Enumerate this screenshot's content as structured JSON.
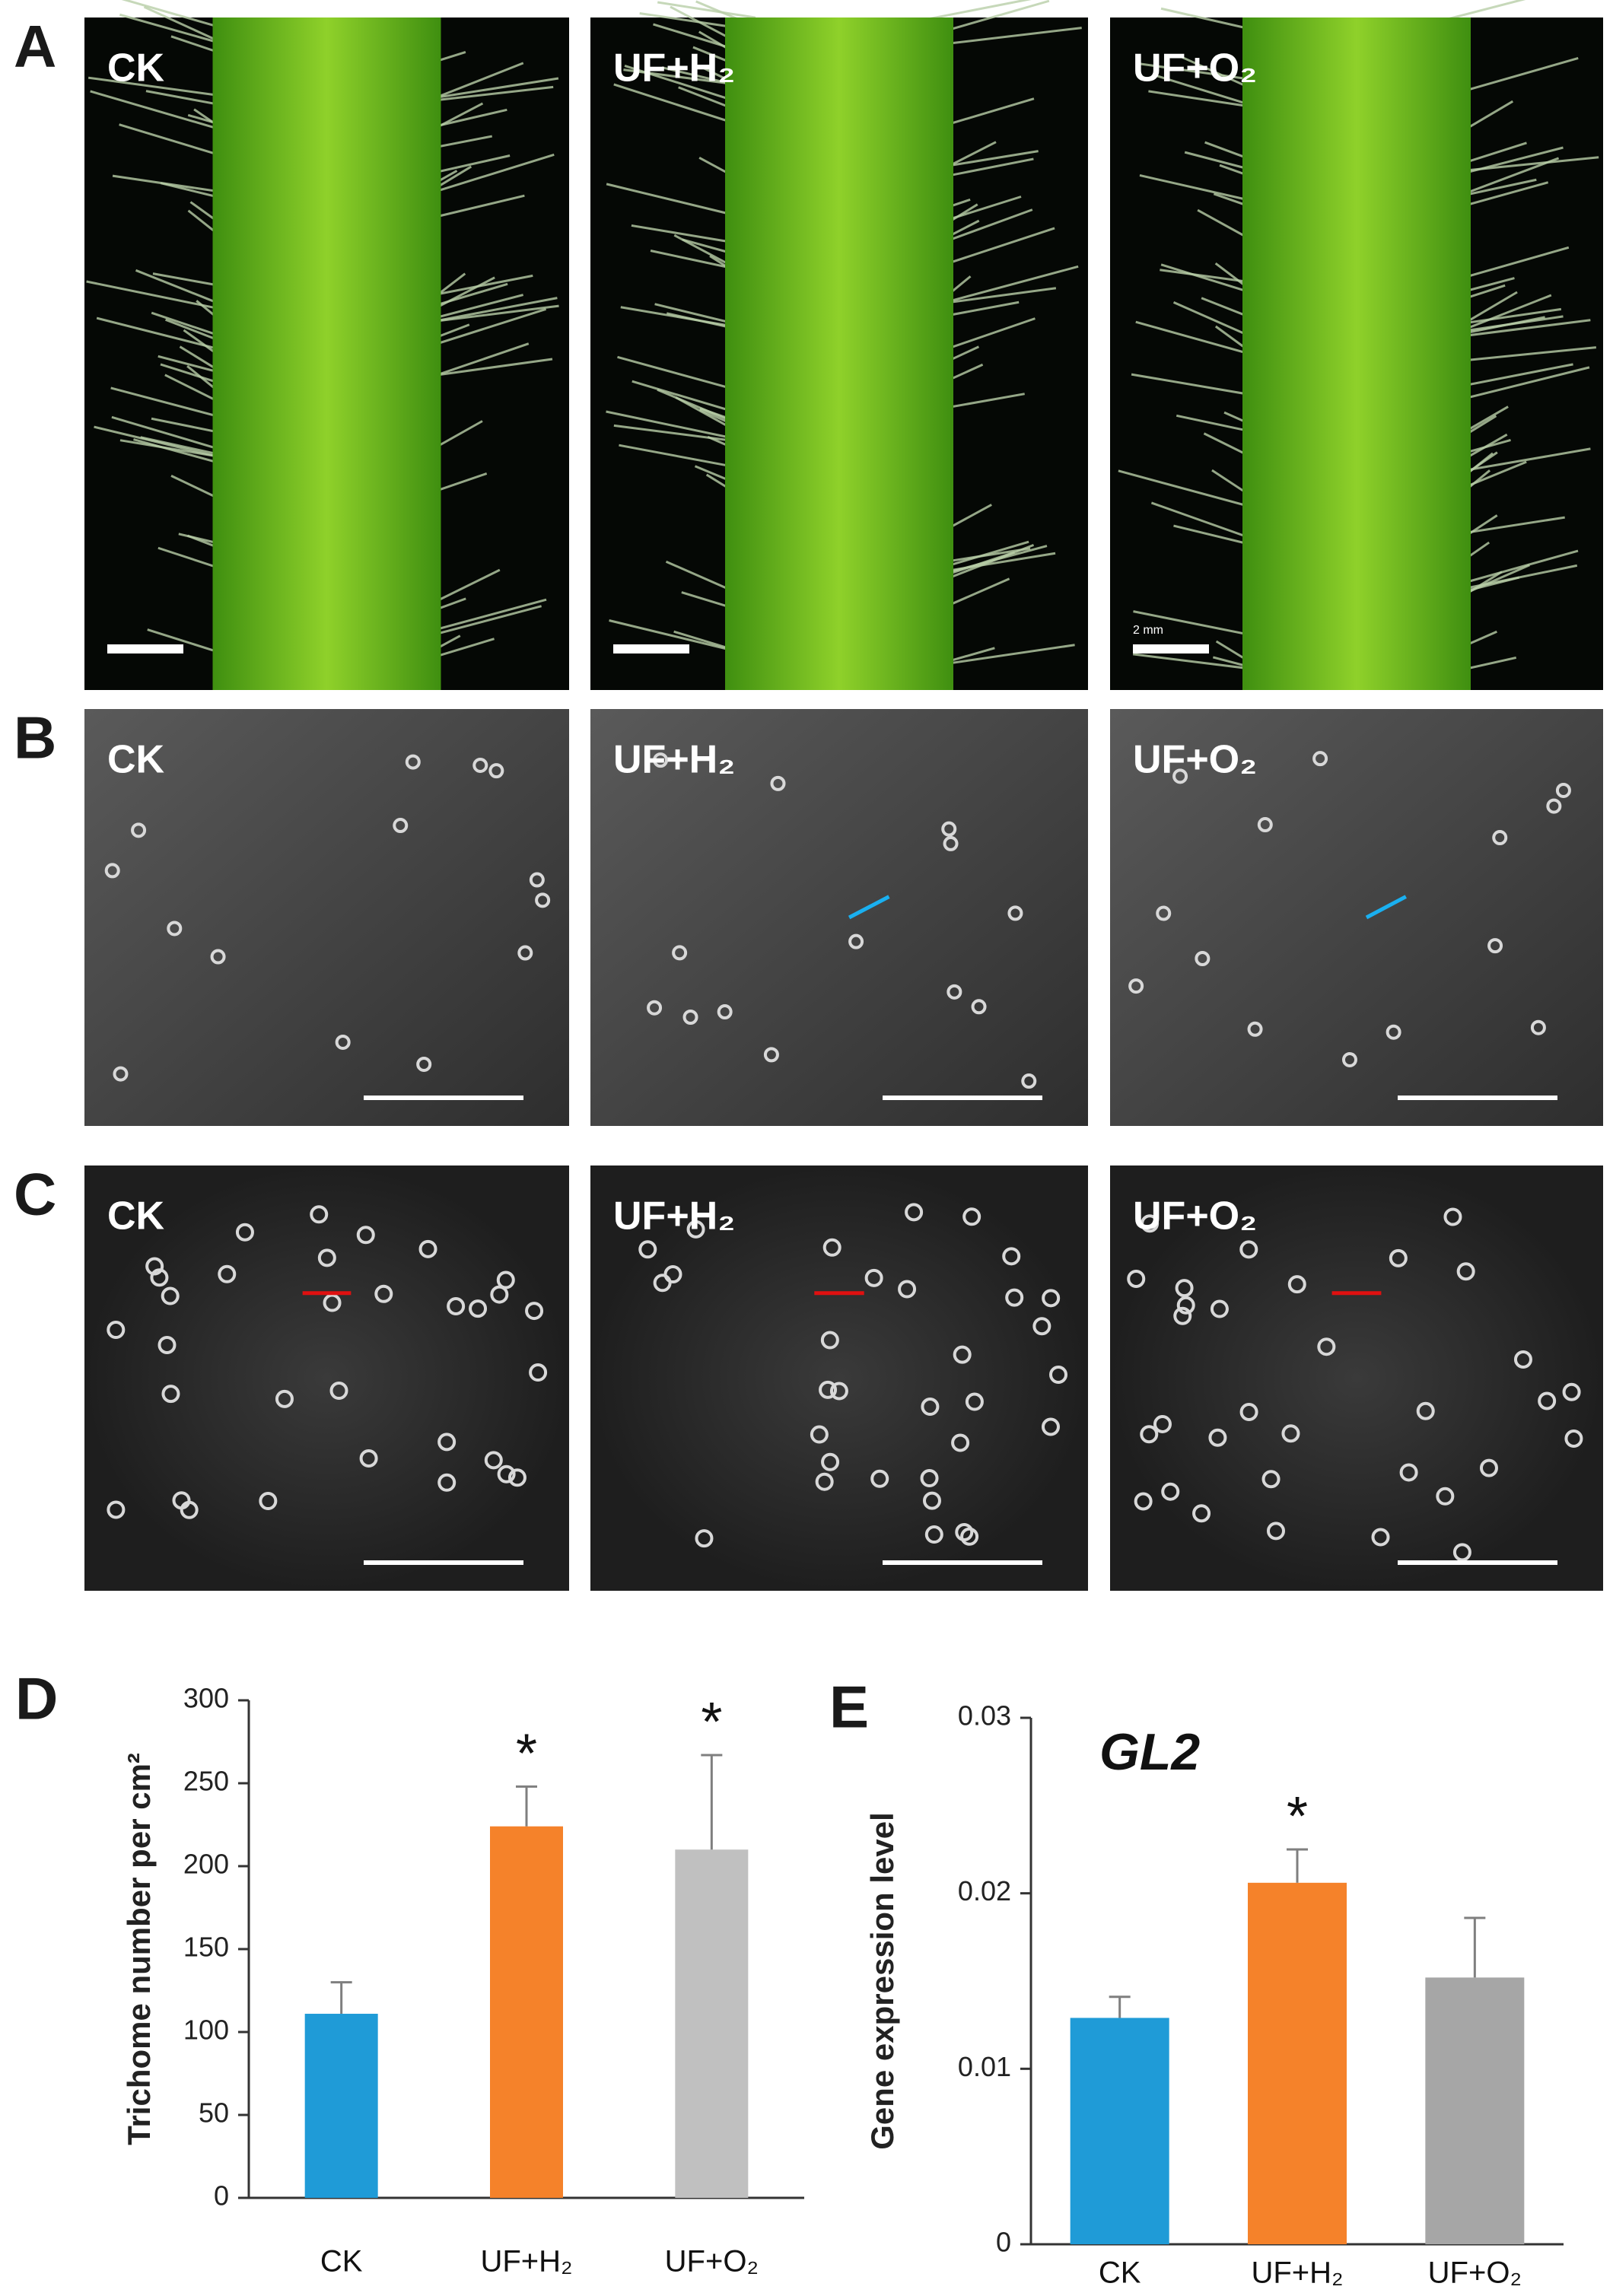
{
  "panels": [
    {
      "letter": "A",
      "labels": [
        "CK",
        "UF+H₂",
        "UF+O₂"
      ],
      "scale_label": "2 mm"
    },
    {
      "letter": "B",
      "labels": [
        "CK",
        "UF+H₂",
        "UF+O₂"
      ]
    },
    {
      "letter": "C",
      "labels": [
        "CK",
        "UF+H₂",
        "UF+O₂"
      ]
    }
  ],
  "chart_data": [
    {
      "type": "bar",
      "letter": "D",
      "y_label": "Trichome number per cm²",
      "categories": [
        "CK",
        "UF+H₂",
        "UF+O₂"
      ],
      "values": [
        111,
        224,
        210
      ],
      "errors": [
        19,
        24,
        57
      ],
      "colors": [
        "#1f9bd7",
        "#f5822a",
        "#c0c0c0"
      ],
      "significance": [
        null,
        "*",
        "*"
      ],
      "ylim": [
        0,
        300
      ],
      "yticks": [
        0,
        50,
        100,
        150,
        200,
        250,
        300
      ],
      "grid": false
    },
    {
      "type": "bar",
      "letter": "E",
      "title": "GL2",
      "y_label": "Gene expression level",
      "categories": [
        "CK",
        "UF+H₂",
        "UF+O₂"
      ],
      "values": [
        0.0129,
        0.0206,
        0.0152
      ],
      "errors": [
        0.0012,
        0.0019,
        0.0034
      ],
      "colors": [
        "#1f9bd7",
        "#f5822a",
        "#a6a6a6"
      ],
      "significance": [
        null,
        "*",
        null
      ],
      "ylim": [
        0,
        0.03
      ],
      "yticks": [
        0,
        0.01,
        0.02,
        0.03
      ],
      "grid": false
    }
  ]
}
